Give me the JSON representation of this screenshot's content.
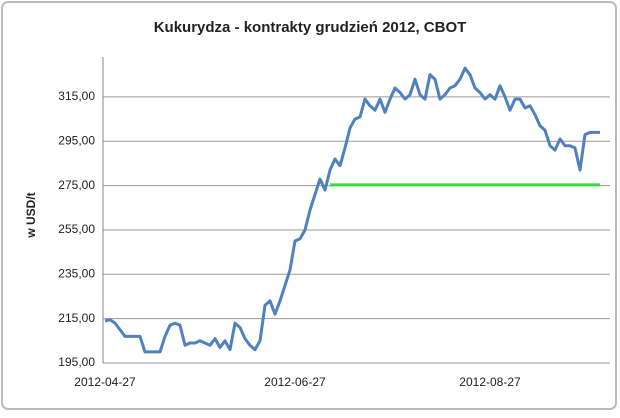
{
  "chart_data": {
    "type": "line",
    "title": "Kukurydza - kontrakty grudzień 2012, CBOT",
    "y_label": "w USD/t",
    "categories": [
      "2012-04-27",
      null,
      null,
      null,
      null,
      null,
      null,
      null,
      null,
      null,
      null,
      null,
      null,
      null,
      null,
      null,
      null,
      null,
      null,
      null,
      null,
      null,
      null,
      null,
      null,
      null,
      null,
      null,
      null,
      null,
      null,
      null,
      null,
      null,
      null,
      null,
      null,
      null,
      "2012-06-27",
      null,
      null,
      null,
      null,
      null,
      null,
      null,
      null,
      null,
      null,
      null,
      null,
      null,
      null,
      null,
      null,
      null,
      null,
      null,
      null,
      null,
      null,
      null,
      null,
      null,
      null,
      null,
      null,
      null,
      null,
      null,
      null,
      null,
      null,
      null,
      null,
      null,
      null,
      "2012-08-27",
      null,
      null,
      null,
      null,
      null,
      null,
      null,
      null,
      null,
      null,
      null,
      null,
      null,
      null,
      null,
      null,
      null,
      null,
      null,
      null,
      null,
      null
    ],
    "series": [
      {
        "color": "#4f81bd",
        "values": [
          214,
          214.5,
          213,
          210,
          207,
          207,
          207,
          207,
          200,
          200,
          200,
          200,
          207,
          212,
          213,
          212,
          203,
          204,
          204,
          205,
          204,
          203,
          206,
          202,
          205,
          201,
          213,
          211,
          206,
          203,
          201,
          205,
          221,
          223,
          217,
          223,
          230,
          237,
          250,
          251,
          255,
          264,
          271,
          278,
          273,
          282,
          287,
          284,
          292,
          301,
          305,
          306,
          314,
          311,
          309,
          314,
          308,
          314,
          319,
          317,
          314,
          316,
          323,
          316,
          314,
          325,
          323,
          314,
          316,
          319,
          320,
          323,
          328,
          325,
          319,
          317,
          314,
          316,
          314,
          320,
          315,
          309,
          314,
          314,
          310,
          311,
          307,
          302,
          300,
          293,
          291,
          296,
          293,
          293,
          292,
          282,
          298,
          299,
          299,
          299
        ]
      },
      {
        "color": "#33dd33",
        "values": [
          null,
          null,
          null,
          null,
          null,
          null,
          null,
          null,
          null,
          null,
          null,
          null,
          null,
          null,
          null,
          null,
          null,
          null,
          null,
          null,
          null,
          null,
          null,
          null,
          null,
          null,
          null,
          null,
          null,
          null,
          null,
          null,
          null,
          null,
          null,
          null,
          null,
          null,
          null,
          null,
          null,
          null,
          null,
          null,
          null,
          275.3,
          275.3,
          275.3,
          275.3,
          275.3,
          275.3,
          275.3,
          275.3,
          275.3,
          275.3,
          275.3,
          275.3,
          275.3,
          275.3,
          275.3,
          275.3,
          275.3,
          275.3,
          275.3,
          275.3,
          275.3,
          275.3,
          275.3,
          275.3,
          275.3,
          275.3,
          275.3,
          275.3,
          275.3,
          275.3,
          275.3,
          275.3,
          275.3,
          275.3,
          275.3,
          275.3,
          275.3,
          275.3,
          275.3,
          275.3,
          275.3,
          275.3,
          275.3,
          275.3,
          275.3,
          275.3,
          275.3,
          275.3,
          275.3,
          275.3,
          275.3,
          275.3,
          275.3,
          275.3,
          275.3
        ]
      }
    ],
    "ylim": [
      195,
      333
    ],
    "yticks": [
      {
        "value": 195,
        "label": "195,00"
      },
      {
        "value": 215,
        "label": "215,00"
      },
      {
        "value": 235,
        "label": "235,00"
      },
      {
        "value": 255,
        "label": "255,00"
      },
      {
        "value": 275,
        "label": "275,00"
      },
      {
        "value": 295,
        "label": "295,00"
      },
      {
        "value": 315,
        "label": "315,00"
      }
    ],
    "grid": true
  }
}
